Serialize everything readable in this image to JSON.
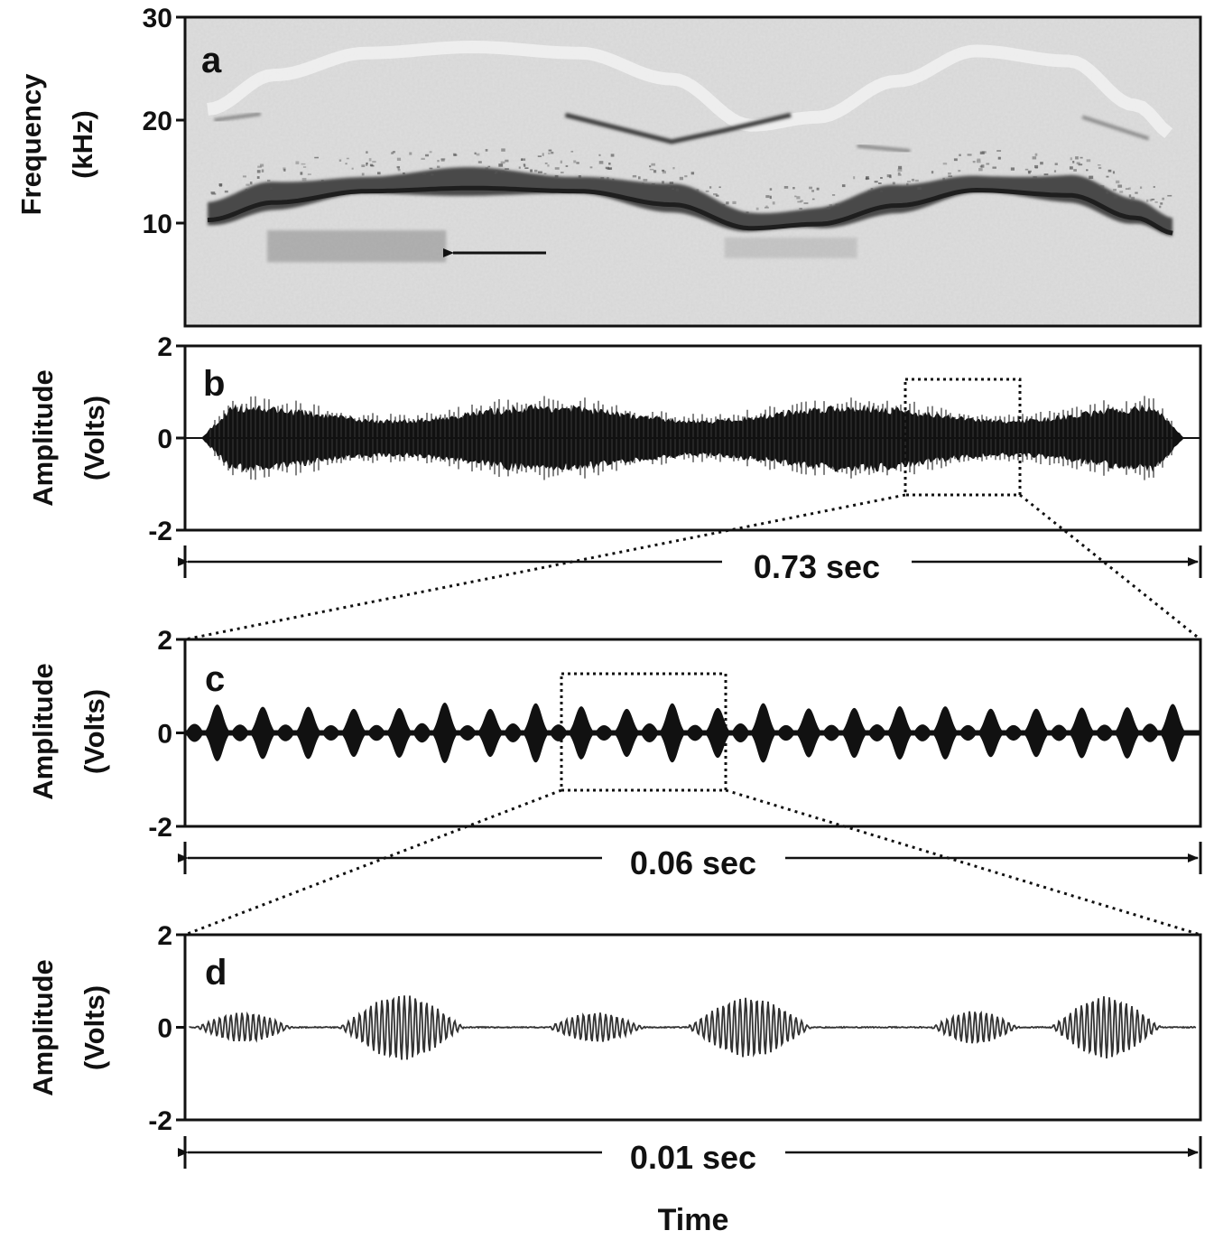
{
  "chart_data": [
    {
      "type": "spectrogram",
      "panel_label": "a",
      "ylabel_line1": "Frequency",
      "ylabel_line2": "(kHz)",
      "ylim": [
        0,
        30
      ],
      "yticks": [
        {
          "value": 30,
          "label": "30"
        },
        {
          "value": 20,
          "label": "20"
        },
        {
          "value": 10,
          "label": "10"
        }
      ],
      "duration_sec": 0.73,
      "fundamental_contour_khz": [
        {
          "t": 0.0,
          "f": 10.8
        },
        {
          "t": 0.05,
          "f": 12.5
        },
        {
          "t": 0.12,
          "f": 13.6
        },
        {
          "t": 0.2,
          "f": 13.9
        },
        {
          "t": 0.28,
          "f": 13.6
        },
        {
          "t": 0.35,
          "f": 12.3
        },
        {
          "t": 0.41,
          "f": 10.0
        },
        {
          "t": 0.46,
          "f": 10.4
        },
        {
          "t": 0.52,
          "f": 12.2
        },
        {
          "t": 0.58,
          "f": 13.7
        },
        {
          "t": 0.65,
          "f": 13.2
        },
        {
          "t": 0.7,
          "f": 11.0
        },
        {
          "t": 0.73,
          "f": 9.5
        }
      ],
      "harmonic_contour_khz": [
        {
          "t": 0.27,
          "f": 20.5
        },
        {
          "t": 0.31,
          "f": 19.2
        },
        {
          "t": 0.35,
          "f": 17.9
        },
        {
          "t": 0.39,
          "f": 19.0
        },
        {
          "t": 0.44,
          "f": 20.5
        }
      ],
      "annotation": "arrow pointing to low-frequency band near 8 kHz"
    },
    {
      "type": "waveform",
      "panel_label": "b",
      "ylabel_line1": "Amplitude",
      "ylabel_line2": "(Volts)",
      "ylim": [
        -2,
        2
      ],
      "yticks": [
        {
          "value": 2,
          "label": "2"
        },
        {
          "value": 0,
          "label": "0"
        },
        {
          "value": -2,
          "label": "-2"
        }
      ],
      "duration_label": "0.73 sec",
      "duration_sec": 0.73,
      "envelope_peak_volts": 0.65,
      "zoom_window_fraction": [
        0.71,
        0.82
      ]
    },
    {
      "type": "waveform",
      "panel_label": "c",
      "ylabel_line1": "Amplitude",
      "ylabel_line2": "(Volts)",
      "ylim": [
        -2,
        2
      ],
      "yticks": [
        {
          "value": 2,
          "label": "2"
        },
        {
          "value": 0,
          "label": "0"
        },
        {
          "value": -2,
          "label": "-2"
        }
      ],
      "duration_label": "0.06 sec",
      "duration_sec": 0.06,
      "pulse_count": 22,
      "pulse_peak_volts": 0.65,
      "zoom_window_fraction": [
        0.37,
        0.53
      ]
    },
    {
      "type": "waveform",
      "panel_label": "d",
      "ylabel_line1": "Amplitude",
      "ylabel_line2": "(Volts)",
      "ylim": [
        -2,
        2
      ],
      "yticks": [
        {
          "value": 2,
          "label": "2"
        },
        {
          "value": 0,
          "label": "0"
        },
        {
          "value": -2,
          "label": "-2"
        }
      ],
      "duration_label": "0.01 sec",
      "duration_sec": 0.01,
      "pulse_peak_volts": 0.7
    }
  ],
  "xlabel": "Time",
  "colors": {
    "ink": "#111111",
    "spectrogram_background": "#dedede",
    "waveform_fill": "#111111",
    "fine_wave": "#333333"
  }
}
